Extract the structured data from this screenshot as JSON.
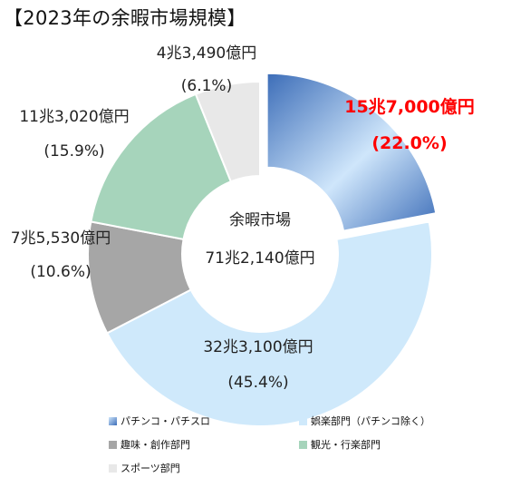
{
  "chart_data": {
    "type": "pie",
    "title": "【2023年の余暇市場規模】",
    "center": {
      "title": "余暇市場",
      "value": "71兆2,140億円"
    },
    "slices": [
      {
        "name": "パチンコ・パチスロ",
        "amount": "15兆7,000億円",
        "percent_label": "(22.0%)",
        "share": 22.0,
        "color": "#4f7fc4",
        "exploded": true
      },
      {
        "name": "娯楽部門（パチンコ除く）",
        "amount": "32兆3,100億円",
        "percent_label": "(45.4%)",
        "share": 45.4,
        "color": "#cfe9fb"
      },
      {
        "name": "趣味・創作部門",
        "amount": "7兆5,530億円",
        "percent_label": "(10.6%)",
        "share": 10.6,
        "color": "#a6a6a6"
      },
      {
        "name": "観光・行楽部門",
        "amount": "11兆3,020億円",
        "percent_label": "(15.9%)",
        "share": 15.9,
        "color": "#a6d4bb"
      },
      {
        "name": "スポーツ部門",
        "amount": "4兆3,490億円",
        "percent_label": "(6.1%)",
        "share": 6.1,
        "color": "#e8e8e8"
      }
    ],
    "highlight_color": "#ff0000",
    "legend_position": "bottom"
  }
}
